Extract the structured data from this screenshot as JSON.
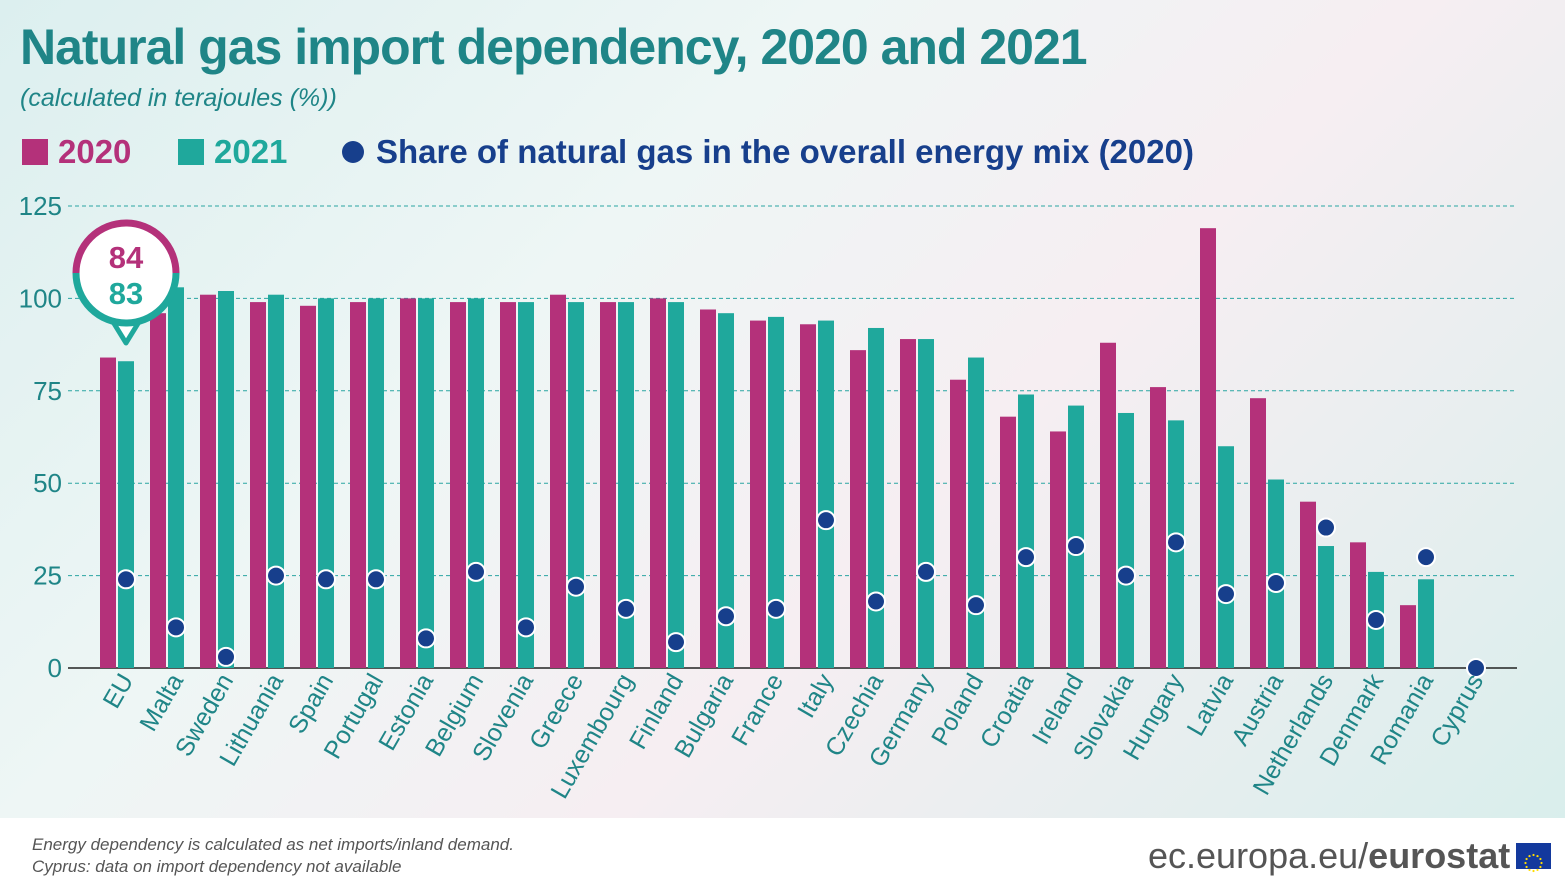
{
  "title": "Natural gas import dependency, 2020 and 2021",
  "subtitle": "(calculated in terajoules (%))",
  "legend": {
    "s2020": "2020",
    "s2021": "2021",
    "share": "Share of natural gas in the overall energy mix (2020)"
  },
  "colors": {
    "s2020": "#b4317a",
    "s2021": "#1fa89c",
    "share": "#173f8c",
    "accent_text": "#1f8587"
  },
  "callout": {
    "v2020": "84",
    "v2021": "83"
  },
  "footnotes": [
    "Energy dependency is calculated as net imports/inland demand.",
    "Cyprus: data on import dependency not available"
  ],
  "logo": {
    "domain": "ec.europa.eu/",
    "brand": "eurostat"
  },
  "chart_data": {
    "type": "bar",
    "title": "Natural gas import dependency, 2020 and 2021",
    "subtitle": "(calculated in terajoules (%))",
    "ylim": [
      0,
      125
    ],
    "yticks": [
      0,
      25,
      50,
      75,
      100,
      125
    ],
    "grid": true,
    "legend_position": "top",
    "categories": [
      "EU",
      "Malta",
      "Sweden",
      "Lithuania",
      "Spain",
      "Portugal",
      "Estonia",
      "Belgium",
      "Slovenia",
      "Greece",
      "Luxembourg",
      "Finland",
      "Bulgaria",
      "France",
      "Italy",
      "Czechia",
      "Germany",
      "Poland",
      "Croatia",
      "Ireland",
      "Slovakia",
      "Hungary",
      "Latvia",
      "Austria",
      "Netherlands",
      "Denmark",
      "Romania",
      "Cyprus"
    ],
    "series": [
      {
        "name": "2020",
        "kind": "bar",
        "values": [
          84,
          96,
          101,
          99,
          98,
          99,
          100,
          99,
          99,
          101,
          99,
          100,
          97,
          94,
          93,
          86,
          89,
          78,
          68,
          64,
          88,
          76,
          119,
          73,
          45,
          34,
          17,
          null
        ]
      },
      {
        "name": "2021",
        "kind": "bar",
        "values": [
          83,
          103,
          102,
          101,
          100,
          100,
          100,
          100,
          99,
          99,
          99,
          99,
          96,
          95,
          94,
          92,
          89,
          84,
          74,
          71,
          69,
          67,
          60,
          51,
          33,
          26,
          24,
          null
        ]
      },
      {
        "name": "Share of natural gas in the overall energy mix (2020)",
        "kind": "dot",
        "values": [
          24,
          11,
          3,
          25,
          24,
          24,
          8,
          26,
          11,
          22,
          16,
          7,
          14,
          16,
          40,
          18,
          26,
          17,
          30,
          33,
          25,
          34,
          20,
          23,
          38,
          13,
          30,
          0
        ]
      }
    ]
  }
}
